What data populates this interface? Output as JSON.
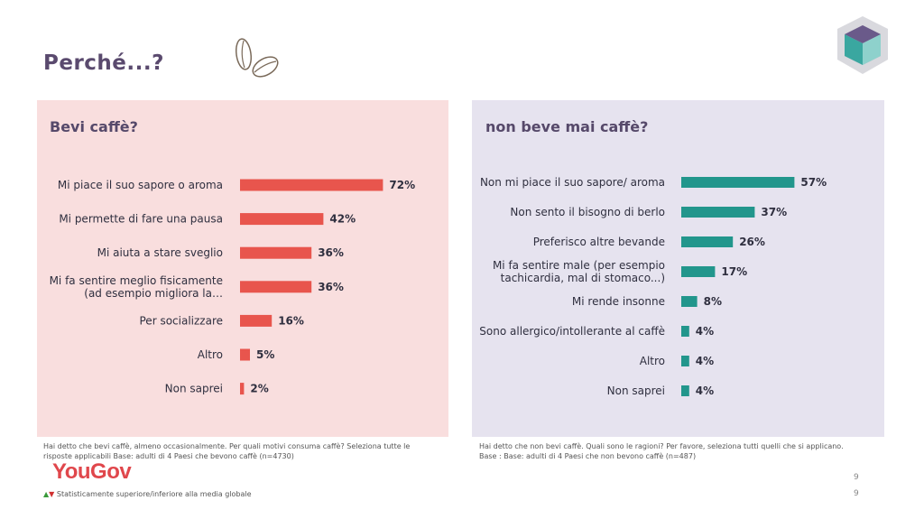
{
  "page": {
    "title": "Perché...?",
    "footnote_left": [
      "Hai detto che bevi caffè, almeno occasionalmente. Per quali motivi consuma caffè? Seleziona tutte le",
      "risposte applicabili Base: adulti di 4 Paesi che bevono caffè (n=4730)"
    ],
    "footnote_right": [
      "Hai detto che non bevi caffè. Quali sono le ragioni? Per favore, seleziona tutti quelli che si applicano.",
      "Base : Base: adulti di 4 Paesi che non bevono caffè (n=487)"
    ],
    "logo": "YouGov",
    "legend_up": "▲",
    "legend_down": "▼",
    "legend_text": "Statisticamente superiore/inferiore alla media globale",
    "page_number_1": "9",
    "page_number_2": "9"
  },
  "icons": [
    "coffee-beans-icon",
    "cube-logo-icon"
  ],
  "colors": {
    "left_bar": "#e8554d",
    "right_bar": "#22968c",
    "left_bg": "#f9dede",
    "right_bg": "#e6e3ef"
  },
  "chart_data": [
    {
      "type": "bar",
      "orientation": "horizontal",
      "title": "Bevi caffè?",
      "categories": [
        [
          "Mi piace il suo sapore o aroma"
        ],
        [
          "Mi permette di fare una pausa"
        ],
        [
          "Mi aiuta a stare sveglio"
        ],
        [
          "Mi fa sentire meglio fisicamente",
          "(ad esempio migliora la…"
        ],
        [
          "Per socializzare"
        ],
        [
          "Altro"
        ],
        [
          "Non saprei"
        ]
      ],
      "values": [
        72,
        42,
        36,
        36,
        16,
        5,
        2
      ],
      "value_labels": [
        "72%",
        "42%",
        "36%",
        "36%",
        "16%",
        "5%",
        "2%"
      ]
    },
    {
      "type": "bar",
      "orientation": "horizontal",
      "title": "non beve mai caffè?",
      "categories": [
        [
          "Non mi piace il suo sapore/ aroma"
        ],
        [
          "Non sento il bisogno di berlo"
        ],
        [
          "Preferisco altre bevande"
        ],
        [
          "Mi fa sentire male (per esempio",
          "tachicardia, mal di stomaco...)"
        ],
        [
          "Mi rende insonne"
        ],
        [
          "Sono allergico/intollerante al caffè"
        ],
        [
          "Altro"
        ],
        [
          "Non saprei"
        ]
      ],
      "values": [
        57,
        37,
        26,
        17,
        8,
        4,
        4,
        4
      ],
      "value_labels": [
        "57%",
        "37%",
        "26%",
        "17%",
        "8%",
        "4%",
        "4%",
        "4%"
      ]
    }
  ]
}
